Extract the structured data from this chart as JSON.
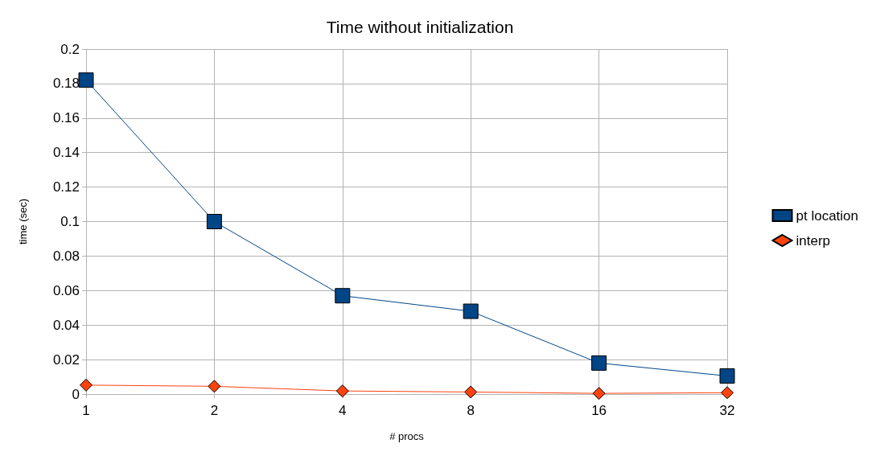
{
  "chart_data": {
    "type": "line",
    "title": "Time without initialization",
    "xlabel": "# procs",
    "ylabel": "time (sec)",
    "categories": [
      "1",
      "2",
      "4",
      "8",
      "16",
      "32"
    ],
    "series": [
      {
        "name": "pt location",
        "color": "#004586",
        "marker": "square",
        "values": [
          0.182,
          0.1,
          0.057,
          0.048,
          0.018,
          0.0105
        ]
      },
      {
        "name": "interp",
        "color": "#ff420e",
        "marker": "diamond",
        "values": [
          0.0052,
          0.0045,
          0.0018,
          0.0012,
          0.0004,
          0.0008
        ]
      }
    ],
    "ylim": [
      0,
      0.2
    ],
    "yticks": [
      0,
      0.02,
      0.04,
      0.06,
      0.08,
      0.1,
      0.12,
      0.14,
      0.16,
      0.18,
      0.2
    ],
    "grid": true,
    "legend": "right"
  }
}
